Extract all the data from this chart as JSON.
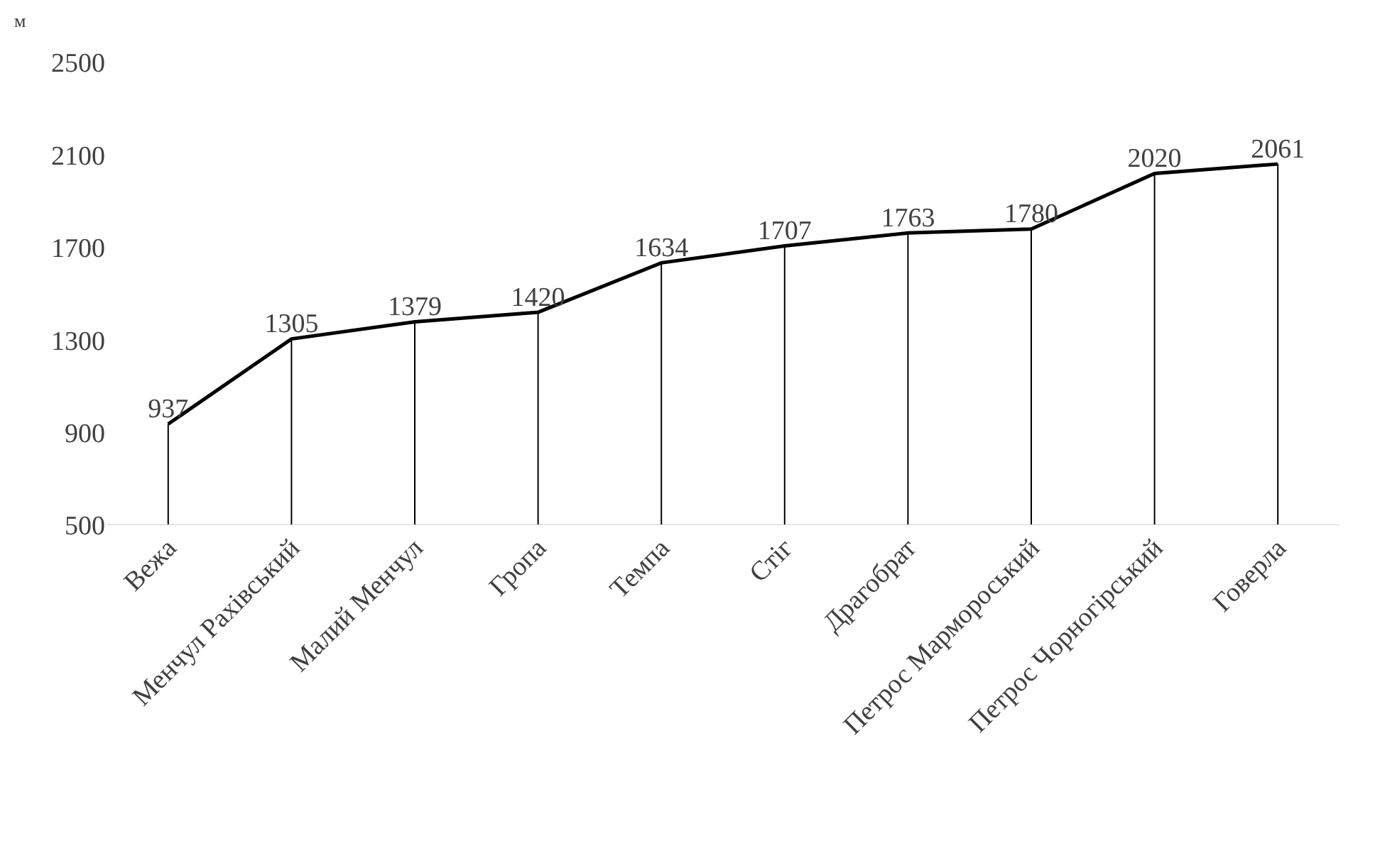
{
  "chart_data": {
    "type": "line",
    "ylabel": "м",
    "categories": [
      "Вежа",
      "Менчул Рахівський",
      "Малий Менчул",
      "Гропа",
      "Темпа",
      "Стіг",
      "Драгобрат",
      "Петрос Мармороський",
      "Петрос Чорногірський",
      "Говерла"
    ],
    "series": [
      {
        "color": "#000000",
        "values": [
          937,
          1305,
          1379,
          1420,
          1634,
          1707,
          1763,
          1780,
          2020,
          2061
        ]
      }
    ],
    "ylim": [
      500,
      2500
    ],
    "yticks": [
      500,
      900,
      1300,
      1700,
      2100,
      2500
    ],
    "grid": "x",
    "marker": "none",
    "line_style": "solid",
    "data_labels": true
  }
}
